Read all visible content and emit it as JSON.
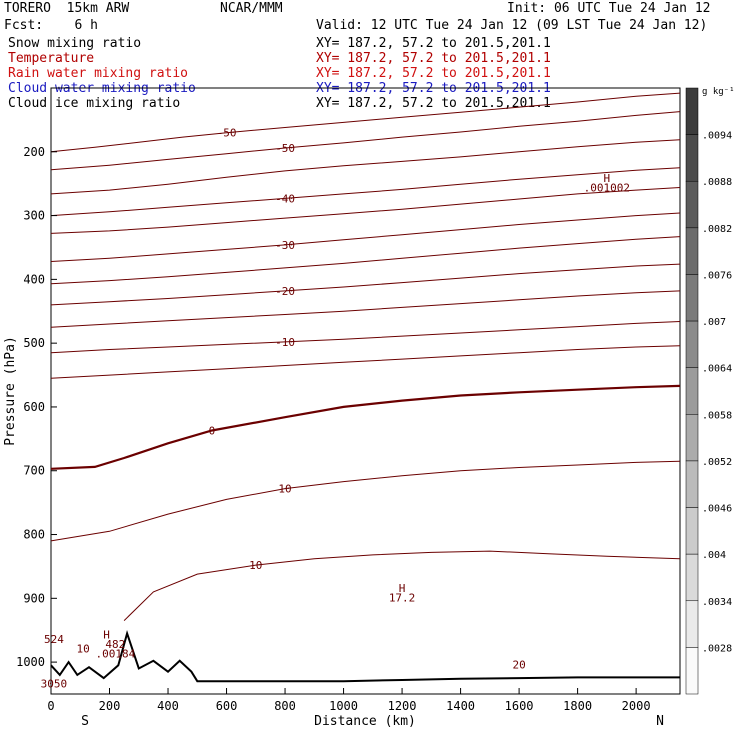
{
  "header": {
    "model": "TORERO  15km ARW",
    "center": "NCAR/MMM",
    "init": "Init: 06 UTC Tue 24 Jan 12",
    "fcst": "Fcst:    6 h",
    "valid": "Valid: 12 UTC Tue 24 Jan 12 (09 LST Tue 24 Jan 12)"
  },
  "legend": [
    {
      "label": "Snow mixing ratio",
      "xy": "XY= 187.2, 57.2 to 201.5,201.1",
      "color": "#000000"
    },
    {
      "label": "Temperature",
      "xy": "XY= 187.2, 57.2 to 201.5,201.1",
      "color": "#b00000"
    },
    {
      "label": "Rain water mixing ratio",
      "xy": "XY= 187.2, 57.2 to 201.5,201.1",
      "color": "#d01010"
    },
    {
      "label": "Cloud water mixing ratio",
      "xy": "XY= 187.2, 57.2 to 201.5,201.1",
      "color": "#1a1ac0"
    },
    {
      "label": "Cloud ice mixing ratio",
      "xy": "XY= 187.2, 57.2 to 201.5,201.1",
      "color": "#000000"
    }
  ],
  "chart_data": {
    "type": "line",
    "xlabel": "Distance (km)",
    "ylabel": "Pressure (hPa)",
    "xlim": [
      0,
      2150
    ],
    "ylim": [
      1050,
      100
    ],
    "x_ticks": [
      0,
      200,
      400,
      600,
      800,
      1000,
      1200,
      1400,
      1600,
      1800,
      2000
    ],
    "y_ticks": [
      200,
      300,
      400,
      500,
      600,
      700,
      800,
      900,
      1000
    ],
    "x_end_labels": {
      "left": "S",
      "right": "N"
    },
    "colorbar": {
      "unit": "g kg⁻¹",
      "labels": [
        ".0094",
        ".0088",
        ".0082",
        ".0076",
        ".007",
        ".0064",
        ".0058",
        ".0052",
        ".0046",
        ".004",
        ".0034",
        ".0028"
      ]
    },
    "temperature_isotherms": [
      {
        "level": "-50",
        "points": [
          [
            0,
            200
          ],
          [
            150,
            193
          ],
          [
            300,
            185
          ],
          [
            450,
            177
          ],
          [
            600,
            170
          ],
          [
            800,
            162
          ],
          [
            1000,
            154
          ],
          [
            1200,
            146
          ],
          [
            1400,
            138
          ],
          [
            1600,
            130
          ],
          [
            1800,
            122
          ],
          [
            2000,
            113
          ],
          [
            2150,
            108
          ]
        ]
      },
      {
        "level": "-50",
        "points": [
          [
            0,
            228
          ],
          [
            200,
            221
          ],
          [
            400,
            212
          ],
          [
            600,
            203
          ],
          [
            800,
            194
          ],
          [
            1000,
            186
          ],
          [
            1200,
            177
          ],
          [
            1400,
            169
          ],
          [
            1600,
            160
          ],
          [
            1800,
            152
          ],
          [
            2000,
            143
          ],
          [
            2150,
            137
          ]
        ]
      },
      {
        "level": "",
        "points": [
          [
            0,
            266
          ],
          [
            200,
            260
          ],
          [
            400,
            251
          ],
          [
            600,
            240
          ],
          [
            800,
            230
          ],
          [
            1000,
            222
          ],
          [
            1200,
            215
          ],
          [
            1400,
            208
          ],
          [
            1600,
            200
          ],
          [
            1800,
            192
          ],
          [
            2000,
            185
          ],
          [
            2150,
            181
          ]
        ]
      },
      {
        "level": "-40",
        "points": [
          [
            0,
            300
          ],
          [
            200,
            294
          ],
          [
            400,
            287
          ],
          [
            600,
            280
          ],
          [
            800,
            273
          ],
          [
            1000,
            266
          ],
          [
            1200,
            259
          ],
          [
            1400,
            251
          ],
          [
            1600,
            243
          ],
          [
            1800,
            236
          ],
          [
            2000,
            229
          ],
          [
            2150,
            225
          ]
        ]
      },
      {
        "level": "",
        "points": [
          [
            0,
            328
          ],
          [
            200,
            324
          ],
          [
            400,
            318
          ],
          [
            600,
            311
          ],
          [
            800,
            304
          ],
          [
            1000,
            297
          ],
          [
            1200,
            290
          ],
          [
            1400,
            282
          ],
          [
            1600,
            274
          ],
          [
            1800,
            266
          ],
          [
            2000,
            260
          ],
          [
            2150,
            256
          ]
        ]
      },
      {
        "level": "-30",
        "points": [
          [
            0,
            372
          ],
          [
            200,
            367
          ],
          [
            400,
            360
          ],
          [
            600,
            353
          ],
          [
            800,
            346
          ],
          [
            1000,
            338
          ],
          [
            1200,
            330
          ],
          [
            1400,
            322
          ],
          [
            1600,
            314
          ],
          [
            1800,
            307
          ],
          [
            2000,
            300
          ],
          [
            2150,
            296
          ]
        ]
      },
      {
        "level": "",
        "points": [
          [
            0,
            407
          ],
          [
            200,
            402
          ],
          [
            400,
            396
          ],
          [
            600,
            389
          ],
          [
            800,
            382
          ],
          [
            1000,
            375
          ],
          [
            1200,
            367
          ],
          [
            1400,
            359
          ],
          [
            1600,
            351
          ],
          [
            1800,
            344
          ],
          [
            2000,
            337
          ],
          [
            2150,
            333
          ]
        ]
      },
      {
        "level": "-20",
        "points": [
          [
            0,
            440
          ],
          [
            200,
            435
          ],
          [
            400,
            430
          ],
          [
            600,
            424
          ],
          [
            800,
            418
          ],
          [
            1000,
            412
          ],
          [
            1200,
            405
          ],
          [
            1400,
            398
          ],
          [
            1600,
            391
          ],
          [
            1800,
            385
          ],
          [
            2000,
            379
          ],
          [
            2150,
            376
          ]
        ]
      },
      {
        "level": "",
        "points": [
          [
            0,
            475
          ],
          [
            200,
            470
          ],
          [
            400,
            465
          ],
          [
            600,
            460
          ],
          [
            800,
            455
          ],
          [
            1000,
            450
          ],
          [
            1200,
            444
          ],
          [
            1400,
            438
          ],
          [
            1600,
            432
          ],
          [
            1800,
            426
          ],
          [
            2000,
            421
          ],
          [
            2150,
            418
          ]
        ]
      },
      {
        "level": "-10",
        "points": [
          [
            0,
            515
          ],
          [
            200,
            510
          ],
          [
            400,
            506
          ],
          [
            600,
            502
          ],
          [
            800,
            498
          ],
          [
            1000,
            494
          ],
          [
            1200,
            489
          ],
          [
            1400,
            484
          ],
          [
            1600,
            479
          ],
          [
            1800,
            474
          ],
          [
            2000,
            469
          ],
          [
            2150,
            466
          ]
        ]
      },
      {
        "level": "",
        "points": [
          [
            0,
            555
          ],
          [
            200,
            550
          ],
          [
            400,
            545
          ],
          [
            600,
            540
          ],
          [
            800,
            535
          ],
          [
            1000,
            530
          ],
          [
            1200,
            525
          ],
          [
            1400,
            520
          ],
          [
            1600,
            515
          ],
          [
            1800,
            510
          ],
          [
            2000,
            506
          ],
          [
            2150,
            504
          ]
        ]
      },
      {
        "level": "0",
        "points": [
          [
            0,
            697
          ],
          [
            150,
            694
          ],
          [
            250,
            680
          ],
          [
            400,
            657
          ],
          [
            550,
            637
          ],
          [
            800,
            616
          ],
          [
            1000,
            600
          ],
          [
            1200,
            590
          ],
          [
            1400,
            582
          ],
          [
            1600,
            577
          ],
          [
            1800,
            573
          ],
          [
            2000,
            569
          ],
          [
            2150,
            567
          ]
        ],
        "bold": true
      },
      {
        "level": "10",
        "points": [
          [
            0,
            810
          ],
          [
            200,
            795
          ],
          [
            400,
            768
          ],
          [
            600,
            745
          ],
          [
            800,
            728
          ],
          [
            1000,
            717
          ],
          [
            1200,
            708
          ],
          [
            1400,
            700
          ],
          [
            1600,
            695
          ],
          [
            1800,
            691
          ],
          [
            2000,
            687
          ],
          [
            2150,
            685
          ]
        ]
      },
      {
        "level": "10",
        "points": [
          [
            250,
            935
          ],
          [
            350,
            890
          ],
          [
            500,
            862
          ],
          [
            700,
            848
          ],
          [
            900,
            838
          ],
          [
            1100,
            832
          ],
          [
            1300,
            828
          ],
          [
            1500,
            826
          ],
          [
            1700,
            830
          ],
          [
            1900,
            834
          ],
          [
            2150,
            838
          ]
        ]
      }
    ],
    "annotations": [
      {
        "text": "H",
        "x": 1200,
        "y": 890
      },
      {
        "text": "17.2",
        "x": 1200,
        "y": 905
      },
      {
        "text": "H",
        "x": 1900,
        "y": 247
      },
      {
        "text": ".001002",
        "x": 1900,
        "y": 262
      },
      {
        "text": "20",
        "x": 1600,
        "y": 1010
      },
      {
        "text": "H",
        "x": 190,
        "y": 963
      },
      {
        "text": "482",
        "x": 220,
        "y": 978
      },
      {
        "text": ".00184",
        "x": 220,
        "y": 993
      },
      {
        "text": "524",
        "x": 10,
        "y": 970
      },
      {
        "text": "10",
        "x": 110,
        "y": 985
      },
      {
        "text": "3050",
        "x": 10,
        "y": 1040
      }
    ],
    "terrain_surface_hpa": [
      [
        0,
        1005
      ],
      [
        30,
        1020
      ],
      [
        60,
        1000
      ],
      [
        90,
        1020
      ],
      [
        130,
        1008
      ],
      [
        180,
        1025
      ],
      [
        230,
        1005
      ],
      [
        260,
        955
      ],
      [
        300,
        1010
      ],
      [
        350,
        998
      ],
      [
        400,
        1015
      ],
      [
        440,
        998
      ],
      [
        480,
        1015
      ],
      [
        500,
        1030
      ],
      [
        600,
        1030
      ],
      [
        800,
        1030
      ],
      [
        1000,
        1030
      ],
      [
        1200,
        1028
      ],
      [
        1400,
        1026
      ],
      [
        1600,
        1025
      ],
      [
        1800,
        1024
      ],
      [
        2000,
        1024
      ],
      [
        2150,
        1024
      ]
    ]
  }
}
